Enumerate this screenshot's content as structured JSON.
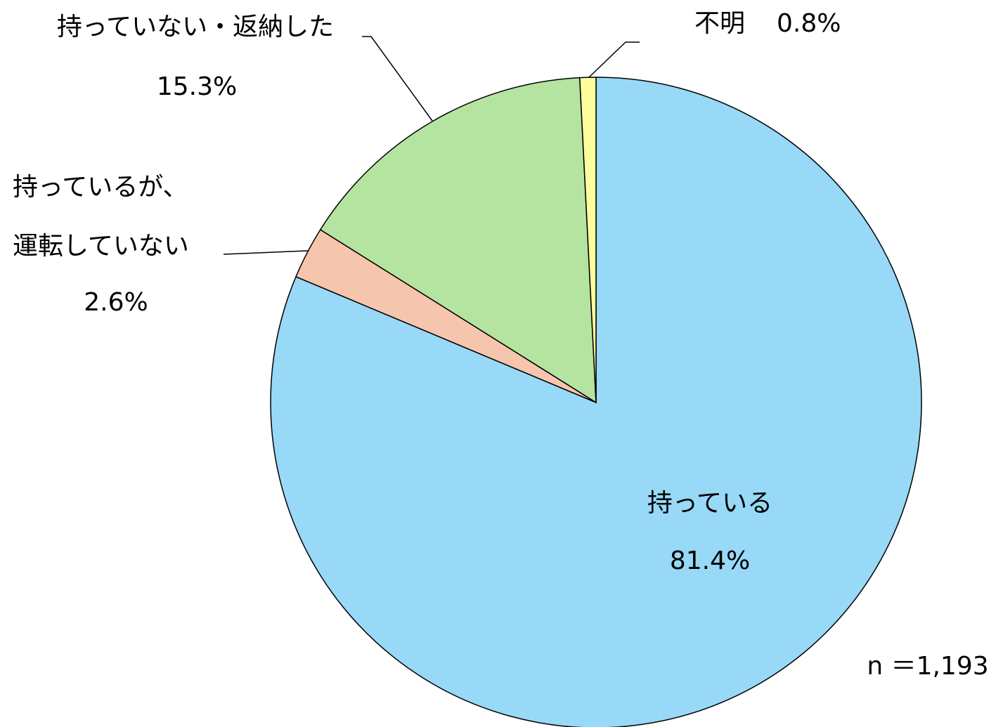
{
  "chart_data": {
    "type": "pie",
    "categories": [
      "持っている",
      "持っているが、\n運転していない",
      "持っていない・返納した",
      "不明"
    ],
    "values": [
      81.4,
      2.6,
      15.3,
      0.8
    ],
    "value_labels": [
      "81.4%",
      "2.6%",
      "15.3%",
      "0.8%"
    ],
    "colors": [
      "#97d9f6",
      "#f6c5ad",
      "#b5e4a0",
      "#fdfd9e"
    ],
    "note": "n ＝1,193"
  }
}
